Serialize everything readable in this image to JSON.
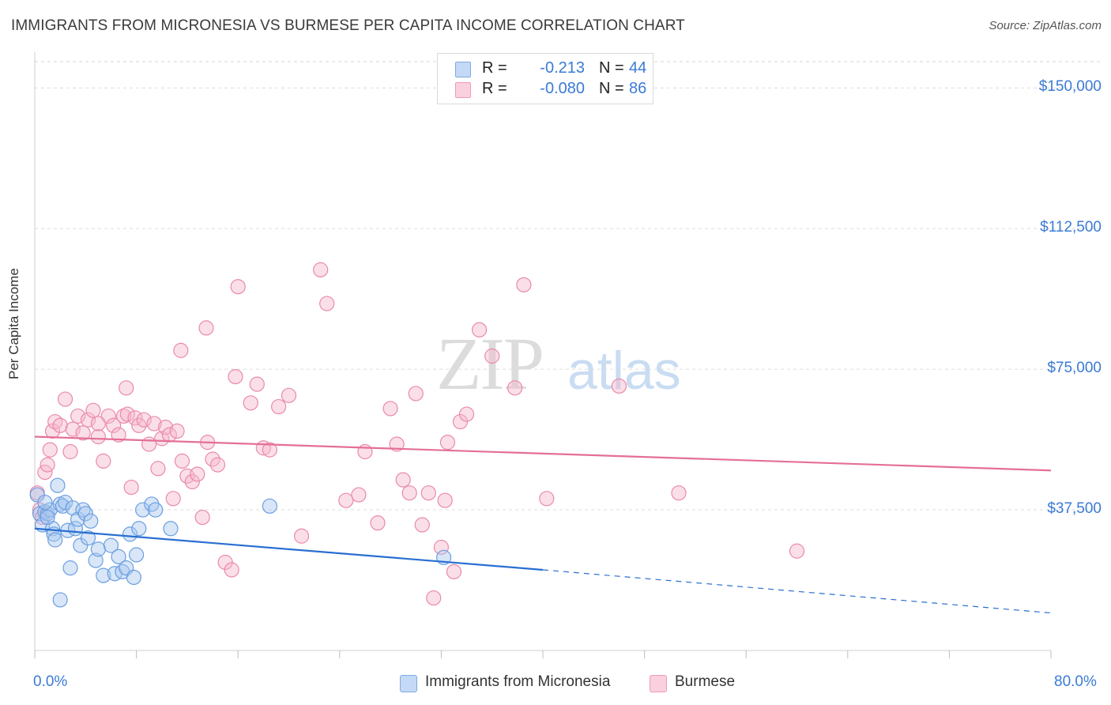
{
  "header": {
    "title": "IMMIGRANTS FROM MICRONESIA VS BURMESE PER CAPITA INCOME CORRELATION CHART",
    "source": "Source: ZipAtlas.com"
  },
  "stats": [
    {
      "r_label": "R =",
      "r_value": "-0.213",
      "n_label": "N =",
      "n_value": "44",
      "color": "#a9c8f0"
    },
    {
      "r_label": "R =",
      "r_value": "-0.080",
      "n_label": "N =",
      "n_value": "86",
      "color": "#f6b7cb"
    }
  ],
  "legend": {
    "series1": "Immigrants from Micronesia",
    "series2": "Burmese"
  },
  "colors": {
    "blue_fill": "#a9c8f0",
    "blue_stroke": "#6a9ee0",
    "blue_line": "#2a6fd1",
    "pink_fill": "#f6b7cb",
    "pink_stroke": "#e98aa9",
    "pink_line": "#e46f98",
    "tick_text": "#3a7bd5"
  },
  "chart_data": {
    "type": "scatter",
    "title": "IMMIGRANTS FROM MICRONESIA VS BURMESE PER CAPITA INCOME CORRELATION CHART",
    "xlabel": "",
    "ylabel": "Per Capita Income",
    "xlim": [
      0,
      80
    ],
    "ylim": [
      0,
      157000
    ],
    "x_tick_labels": [
      "0.0%",
      "80.0%"
    ],
    "y_ticks": [
      37500,
      75000,
      112500,
      150000
    ],
    "y_tick_labels": [
      "$37,500",
      "$75,000",
      "$112,500",
      "$150,000"
    ],
    "grid": true,
    "legend_position": "bottom",
    "watermark": "ZIPatlas",
    "series": [
      {
        "name": "Immigrants from Micronesia",
        "color": "#a9c8f0",
        "trend": {
          "x0": 0,
          "y0": 32500,
          "x1": 40,
          "y1": 21500,
          "dashed_to_x": 80,
          "dashed_to_y": 10000
        },
        "points": [
          [
            0.2,
            41500
          ],
          [
            0.4,
            36500
          ],
          [
            0.6,
            33500
          ],
          [
            0.8,
            37000
          ],
          [
            1.0,
            36500
          ],
          [
            1.2,
            37500
          ],
          [
            1.4,
            32500
          ],
          [
            1.5,
            31000
          ],
          [
            1.6,
            29500
          ],
          [
            1.8,
            44000
          ],
          [
            2.0,
            39000
          ],
          [
            2.2,
            38500
          ],
          [
            2.4,
            39500
          ],
          [
            2.6,
            32000
          ],
          [
            2.8,
            22000
          ],
          [
            3.0,
            38000
          ],
          [
            3.2,
            32500
          ],
          [
            3.4,
            35000
          ],
          [
            3.6,
            28000
          ],
          [
            3.8,
            37500
          ],
          [
            4.0,
            36500
          ],
          [
            4.2,
            30000
          ],
          [
            4.4,
            34500
          ],
          [
            4.8,
            24000
          ],
          [
            5.0,
            27000
          ],
          [
            5.4,
            20000
          ],
          [
            6.0,
            28000
          ],
          [
            6.3,
            20500
          ],
          [
            6.6,
            25000
          ],
          [
            6.9,
            21000
          ],
          [
            7.2,
            22000
          ],
          [
            7.5,
            31000
          ],
          [
            7.8,
            19500
          ],
          [
            8.0,
            25500
          ],
          [
            8.2,
            32500
          ],
          [
            8.5,
            37500
          ],
          [
            9.2,
            39000
          ],
          [
            9.5,
            37500
          ],
          [
            10.7,
            32500
          ],
          [
            18.5,
            38500
          ],
          [
            32.2,
            24800
          ],
          [
            2.0,
            13500
          ],
          [
            1.0,
            35500
          ],
          [
            0.8,
            39500
          ]
        ]
      },
      {
        "name": "Burmese",
        "color": "#f6b7cb",
        "trend": {
          "x0": 0,
          "y0": 57000,
          "x1": 80,
          "y1": 48000
        },
        "points": [
          [
            0.2,
            42000
          ],
          [
            0.4,
            37500
          ],
          [
            0.6,
            35500
          ],
          [
            0.8,
            47500
          ],
          [
            1.0,
            49500
          ],
          [
            1.2,
            53500
          ],
          [
            1.4,
            58500
          ],
          [
            1.6,
            61000
          ],
          [
            2.0,
            60000
          ],
          [
            2.4,
            67000
          ],
          [
            2.8,
            53000
          ],
          [
            3.0,
            59000
          ],
          [
            3.4,
            62500
          ],
          [
            3.8,
            58000
          ],
          [
            4.2,
            61500
          ],
          [
            4.6,
            64000
          ],
          [
            5.0,
            57000
          ],
          [
            5.4,
            50500
          ],
          [
            5.8,
            62500
          ],
          [
            6.2,
            60000
          ],
          [
            6.6,
            57500
          ],
          [
            7.0,
            62500
          ],
          [
            7.3,
            63000
          ],
          [
            7.6,
            43500
          ],
          [
            7.9,
            62000
          ],
          [
            8.2,
            60000
          ],
          [
            8.6,
            61500
          ],
          [
            9.0,
            55000
          ],
          [
            9.4,
            60500
          ],
          [
            9.7,
            48500
          ],
          [
            10.0,
            56500
          ],
          [
            10.3,
            59500
          ],
          [
            10.6,
            57500
          ],
          [
            10.9,
            40500
          ],
          [
            11.2,
            58500
          ],
          [
            11.6,
            50500
          ],
          [
            12.0,
            46500
          ],
          [
            12.4,
            45000
          ],
          [
            12.8,
            47000
          ],
          [
            13.2,
            35500
          ],
          [
            13.6,
            55500
          ],
          [
            14.0,
            51000
          ],
          [
            14.4,
            49500
          ],
          [
            15.0,
            23500
          ],
          [
            15.5,
            21500
          ],
          [
            16.0,
            97000
          ],
          [
            17.0,
            66000
          ],
          [
            17.5,
            71000
          ],
          [
            18.0,
            54000
          ],
          [
            18.5,
            53500
          ],
          [
            19.2,
            65000
          ],
          [
            20.0,
            68000
          ],
          [
            21.0,
            30500
          ],
          [
            22.5,
            101500
          ],
          [
            23.0,
            92500
          ],
          [
            24.5,
            40000
          ],
          [
            25.5,
            41500
          ],
          [
            26.0,
            53000
          ],
          [
            27.0,
            34000
          ],
          [
            28.0,
            64500
          ],
          [
            28.5,
            55000
          ],
          [
            29.0,
            45500
          ],
          [
            29.5,
            42000
          ],
          [
            30.0,
            68500
          ],
          [
            30.5,
            33500
          ],
          [
            31.0,
            42000
          ],
          [
            32.0,
            27500
          ],
          [
            32.5,
            55500
          ],
          [
            33.0,
            21000
          ],
          [
            33.5,
            61000
          ],
          [
            34.0,
            63000
          ],
          [
            35.0,
            85500
          ],
          [
            36.0,
            78500
          ],
          [
            32.3,
            40000
          ],
          [
            31.4,
            14000
          ],
          [
            37.8,
            70000
          ],
          [
            38.5,
            97500
          ],
          [
            40.3,
            40500
          ],
          [
            46.0,
            70500
          ],
          [
            50.7,
            42000
          ],
          [
            60.0,
            26500
          ],
          [
            13.5,
            86000
          ],
          [
            11.5,
            80000
          ],
          [
            15.8,
            73000
          ],
          [
            7.2,
            70000
          ],
          [
            5.0,
            60500
          ]
        ]
      }
    ]
  }
}
